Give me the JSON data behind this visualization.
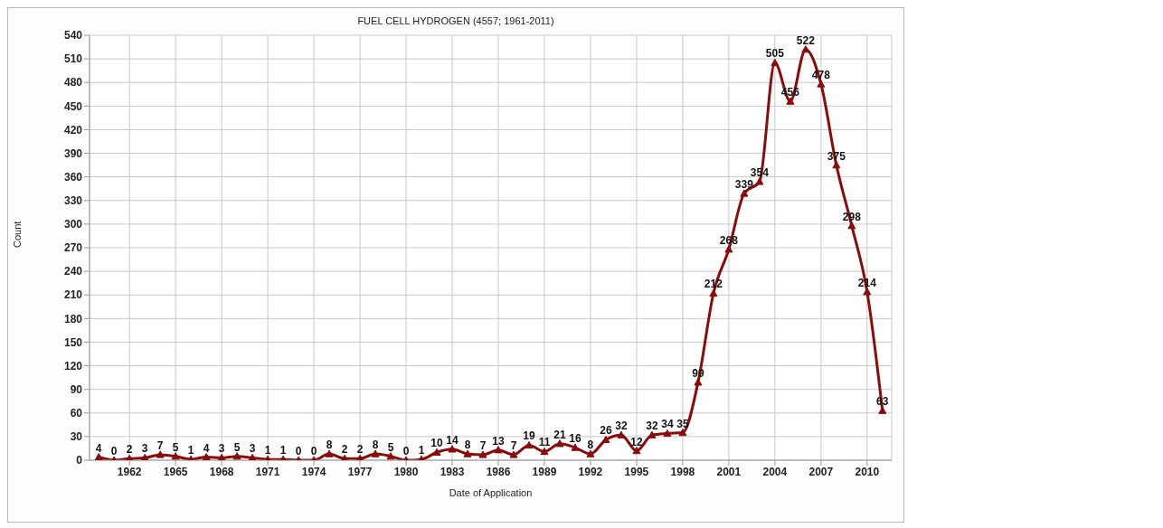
{
  "chart_data": {
    "type": "line",
    "title": "FUEL CELL HYDROGEN (4557; 1961-2011)",
    "xlabel": "Date of Application",
    "ylabel": "Count",
    "x": [
      1960,
      1961,
      1962,
      1963,
      1964,
      1965,
      1966,
      1967,
      1968,
      1969,
      1970,
      1971,
      1972,
      1973,
      1974,
      1975,
      1976,
      1977,
      1978,
      1979,
      1980,
      1981,
      1982,
      1983,
      1984,
      1985,
      1986,
      1987,
      1988,
      1989,
      1990,
      1991,
      1992,
      1993,
      1994,
      1995,
      1996,
      1997,
      1998,
      1999,
      2000,
      2001,
      2002,
      2003,
      2004,
      2005,
      2006,
      2007,
      2008,
      2009,
      2010,
      2011
    ],
    "series": [
      {
        "color": "#8b0a0a",
        "values": [
          4,
          0,
          2,
          3,
          7,
          5,
          1,
          4,
          3,
          5,
          3,
          1,
          1,
          0,
          0,
          8,
          2,
          2,
          8,
          5,
          0,
          1,
          10,
          14,
          8,
          7,
          13,
          7,
          19,
          11,
          21,
          16,
          8,
          26,
          32,
          12,
          32,
          34,
          35,
          99,
          212,
          268,
          339,
          354,
          505,
          456,
          522,
          478,
          375,
          298,
          214,
          63
        ]
      }
    ],
    "xlim": [
      1959.4,
      2011.6
    ],
    "xticks": [
      1962,
      1965,
      1968,
      1971,
      1974,
      1977,
      1980,
      1983,
      1986,
      1989,
      1992,
      1995,
      1998,
      2001,
      2004,
      2007,
      2010
    ],
    "ylim": [
      0,
      540
    ],
    "yticks": [
      0,
      30,
      60,
      90,
      120,
      150,
      180,
      210,
      240,
      270,
      300,
      330,
      360,
      390,
      420,
      450,
      480,
      510,
      540
    ],
    "grid": true,
    "legend": false,
    "marker": "triangle",
    "line_style": "solid",
    "data_labels": true
  }
}
